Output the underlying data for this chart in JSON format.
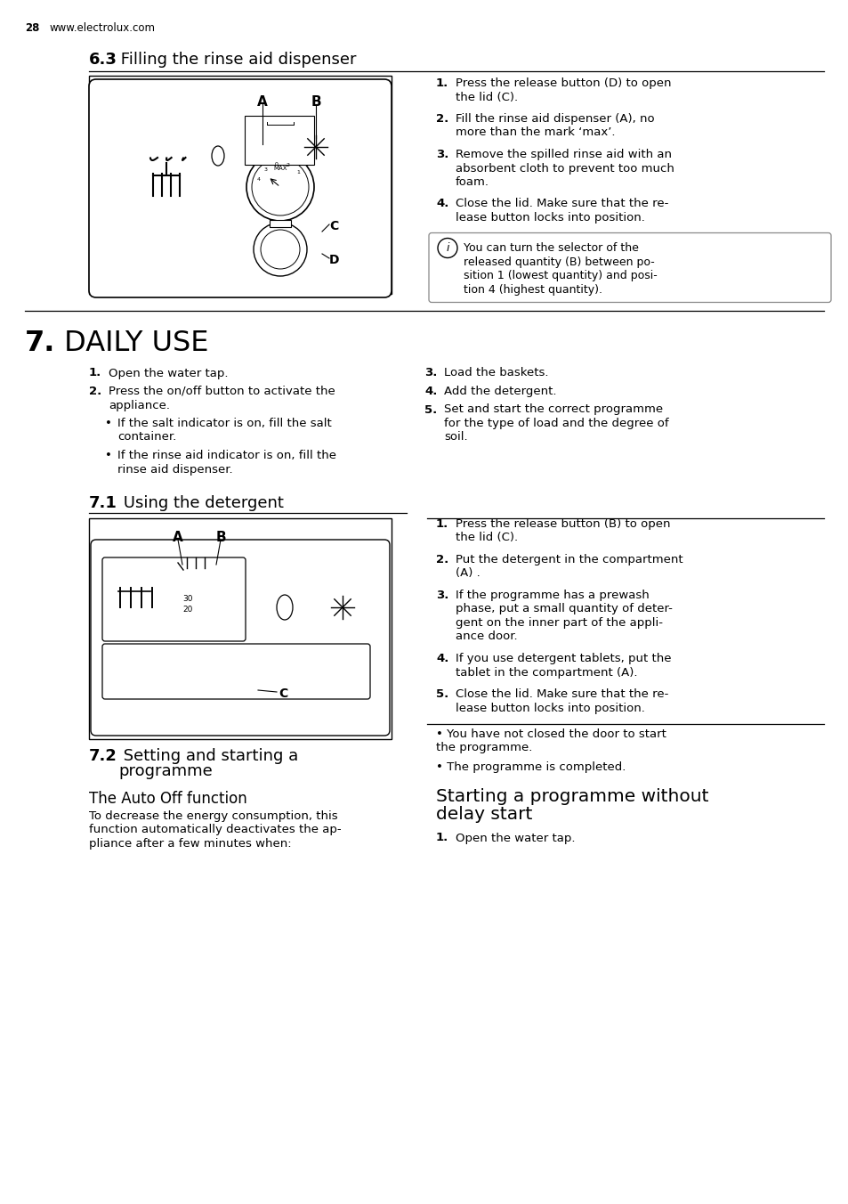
{
  "bg_color": "#ffffff",
  "page_num": "28",
  "website": "www.electrolux.com",
  "section_63_bold": "6.3",
  "section_63_rest": " Filling the rinse aid dispenser",
  "steps_63": [
    {
      "num": "1.",
      "text": "Press the release button (D) to open\nthe lid (C)."
    },
    {
      "num": "2.",
      "text": "Fill the rinse aid dispenser (A), no\nmore than the mark ‘max’."
    },
    {
      "num": "3.",
      "text": "Remove the spilled rinse aid with an\nabsorbent cloth to prevent too much\nfoam."
    },
    {
      "num": "4.",
      "text": "Close the lid. Make sure that the re-\nlease button locks into position."
    }
  ],
  "info_text": "You can turn the selector of the\nreleased quantity (B) between po-\nsition 1 (lowest quantity) and posi-\ntion 4 (highest quantity).",
  "section_7_bold": "7.",
  "section_7_rest": " DAILY USE",
  "steps_7_left": [
    {
      "num": "1.",
      "text": "Open the water tap.",
      "bullet": false
    },
    {
      "num": "2.",
      "text": "Press the on/off button to activate the\nappliance.",
      "bullet": false
    },
    {
      "num": "•",
      "text": "If the salt indicator is on, fill the salt\ncontainer.",
      "bullet": true
    },
    {
      "num": "•",
      "text": "If the rinse aid indicator is on, fill the\nrinse aid dispenser.",
      "bullet": true
    }
  ],
  "steps_7_right": [
    {
      "num": "3.",
      "text": "Load the baskets."
    },
    {
      "num": "4.",
      "text": "Add the detergent."
    },
    {
      "num": "5.",
      "text": "Set and start the correct programme\nfor the type of load and the degree of\nsoil."
    }
  ],
  "section_71_bold": "7.1",
  "section_71_rest": " Using the detergent",
  "steps_71": [
    {
      "num": "1.",
      "text": "Press the release button (B) to open\nthe lid (C)."
    },
    {
      "num": "2.",
      "text": "Put the detergent in the compartment\n(A) ."
    },
    {
      "num": "3.",
      "text": "If the programme has a prewash\nphase, put a small quantity of deter-\ngent on the inner part of the appli-\nance door."
    },
    {
      "num": "4.",
      "text": "If you use detergent tablets, put the\ntablet in the compartment (A)."
    },
    {
      "num": "5.",
      "text": "Close the lid. Make sure that the re-\nlease button locks into position."
    }
  ],
  "section_72_bold": "7.2",
  "section_72_rest": " Setting and starting a\nprogramme",
  "auto_off_title": "The Auto Off function",
  "auto_off_text": "To decrease the energy consumption, this\nfunction automatically deactivates the ap-\npliance after a few minutes when:",
  "bullets_right": [
    "• You have not closed the door to start\nthe programme.",
    "• The programme is completed."
  ],
  "start_title": "Starting a programme without\ndelay start",
  "start_steps": [
    {
      "num": "1.",
      "text": "Open the water tap."
    }
  ]
}
